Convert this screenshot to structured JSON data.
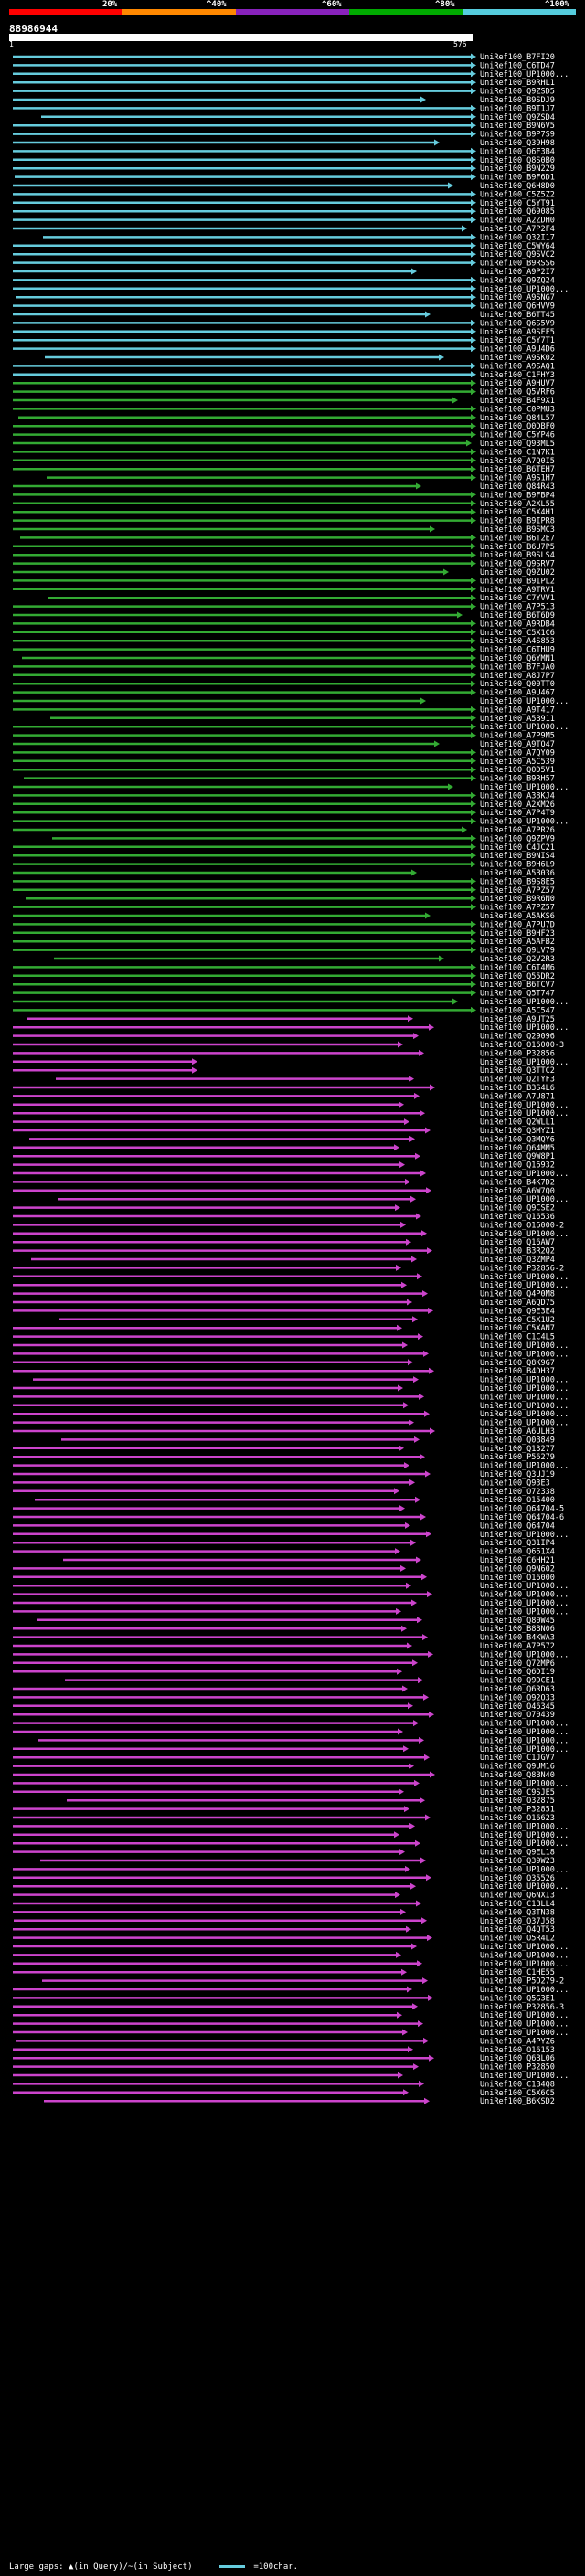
{
  "scale": {
    "labels": [
      "20%",
      "^40%",
      "^60%",
      "^80%",
      "^100%"
    ],
    "colors": [
      "#ff0000",
      "#ff8800",
      "#8822bb",
      "#00aa00",
      "#55ccdd"
    ]
  },
  "query": {
    "id": "88986944",
    "start": "1",
    "end": "576"
  },
  "row_colors": [
    "#66ccdd",
    "#33aa33",
    "#cc44cc"
  ],
  "hits": [
    "UniRef100_B7FI20",
    "UniRef100_C6TD47",
    "UniRef100_UP1000...",
    "UniRef100_B9RHL1",
    "UniRef100_Q9ZSD5",
    "UniRef100_B9SDJ9",
    "UniRef100_B9T1J7",
    "UniRef100_Q9ZSD4",
    "UniRef100_B9N6V5",
    "UniRef100_B9P7S9",
    "UniRef100_Q39H98",
    "UniRef100_Q6F3B4",
    "UniRef100_Q8S0B0",
    "UniRef100_B9N229",
    "UniRef100_B9F6D1",
    "UniRef100_Q6H8D0",
    "UniRef100_C5Z5Z2",
    "UniRef100_C5YT91",
    "UniRef100_Q69085",
    "UniRef100_A2ZDH0",
    "UniRef100_A7P2F4",
    "UniRef100_Q32I17",
    "UniRef100_C5WY64",
    "UniRef100_Q9SVC2",
    "UniRef100_B9RSS6",
    "UniRef100_A9P2I7",
    "UniRef100_Q9ZQ24",
    "UniRef100_UP1000...",
    "UniRef100_A9SNG7",
    "UniRef100_Q6HVV9",
    "UniRef100_B6TT45",
    "UniRef100_Q6S5V9",
    "UniRef100_A9SFF5",
    "UniRef100_C5Y7T1",
    "UniRef100_A9U4D6",
    "UniRef100_A9SK02",
    "UniRef100_A9SAQ1",
    "UniRef100_C1FHY3",
    "UniRef100_A9HUV7",
    "UniRef100_Q5VRF6",
    "UniRef100_B4F9X1",
    "UniRef100_C0PMU3",
    "UniRef100_Q84L57",
    "UniRef100_Q0DBF0",
    "UniRef100_C5YP46",
    "UniRef100_Q93ML5",
    "UniRef100_C1N7K1",
    "UniRef100_A7Q0I5",
    "UniRef100_B6TEH7",
    "UniRef100_A9S1H7",
    "UniRef100_Q84R43",
    "UniRef100_B9FBP4",
    "UniRef100_A2XL55",
    "UniRef100_C5X4H1",
    "UniRef100_B9IPR8",
    "UniRef100_B9SMC3",
    "UniRef100_B6T2E7",
    "UniRef100_B6U7P5",
    "UniRef100_B9SLS4",
    "UniRef100_Q9SRV7",
    "UniRef100_Q9ZU02",
    "UniRef100_B9IPL2",
    "UniRef100_A9TRV1",
    "UniRef100_C7YVV1",
    "UniRef100_A7P513",
    "UniRef100_B6T6D9",
    "UniRef100_A9RDB4",
    "UniRef100_C5X1C6",
    "UniRef100_A4S853",
    "UniRef100_C6THU9",
    "UniRef100_Q6YMN1",
    "UniRef100_B7FJA0",
    "UniRef100_A8J7P7",
    "UniRef100_Q00TT0",
    "UniRef100_A9U467",
    "UniRef100_UP1000...",
    "UniRef100_A9T417",
    "UniRef100_A5B911",
    "UniRef100_UP1000...",
    "UniRef100_A7P9M5",
    "UniRef100_A9TQ47",
    "UniRef100_A7QY09",
    "UniRef100_A5C539",
    "UniRef100_Q0D5V1",
    "UniRef100_B9RH57",
    "UniRef100_UP1000...",
    "UniRef100_A38KJ4",
    "UniRef100_A2XM26",
    "UniRef100_A7P4T9",
    "UniRef100_UP1000...",
    "UniRef100_A7PR26",
    "UniRef100_Q9ZPV9",
    "UniRef100_C4JC21",
    "UniRef100_B9NIS4",
    "UniRef100_B9H6L9",
    "UniRef100_A5B036",
    "UniRef100_B9S8E5",
    "UniRef100_A7PZ57",
    "UniRef100_B9R6N0",
    "UniRef100_A7PZ57",
    "UniRef100_A5AKS6",
    "UniRef100_A7PU7D",
    "UniRef100_B9HF23",
    "UniRef100_A5AFB2",
    "UniRef100_Q9LV79",
    "UniRef100_Q2V2R3",
    "UniRef100_C6T4M6",
    "UniRef100_Q55DR2",
    "UniRef100_B6TCV7",
    "UniRef100_Q5T747",
    "UniRef100_UP1000...",
    "UniRef100_A5C547",
    "UniRef100_A9UT25",
    "UniRef100_UP1000...",
    "UniRef100_Q29096",
    "UniRef100_O16000-3",
    "UniRef100_P32856",
    "UniRef100_UP1000...",
    "UniRef100_Q3TTC2",
    "UniRef100_Q2TYF3",
    "UniRef100_B3S4L6",
    "UniRef100_A7U871",
    "UniRef100_UP1000...",
    "UniRef100_UP1000...",
    "UniRef100_Q2WLL1",
    "UniRef100_Q3MYZ1",
    "UniRef100_Q3MQY6",
    "UniRef100_Q64MM5",
    "UniRef100_Q9W8P1",
    "UniRef100_Q16932",
    "UniRef100_UP1000...",
    "UniRef100_B4K7D2",
    "UniRef100_A6W7Q0",
    "UniRef100_UP1000...",
    "UniRef100_Q9CSE2",
    "UniRef100_Q16536",
    "UniRef100_O16000-2",
    "UniRef100_UP1000...",
    "UniRef100_Q16AW7",
    "UniRef100_B3R2Q2",
    "UniRef100_Q3ZMP4",
    "UniRef100_P32856-2",
    "UniRef100_UP1000...",
    "UniRef100_UP1000...",
    "UniRef100_Q4P0M8",
    "UniRef100_A6QD75",
    "UniRef100_Q9E3E4",
    "UniRef100_C5X1U2",
    "UniRef100_C5XAN7",
    "UniRef100_C1C4L5",
    "UniRef100_UP1000...",
    "UniRef100_UP1000...",
    "UniRef100_Q8K9G7",
    "UniRef100_B4DH37",
    "UniRef100_UP1000...",
    "UniRef100_UP1000...",
    "UniRef100_UP1000...",
    "UniRef100_UP1000...",
    "UniRef100_UP1000...",
    "UniRef100_UP1000...",
    "UniRef100_A6ULH3",
    "UniRef100_Q0B849",
    "UniRef100_Q13277",
    "UniRef100_P56279",
    "UniRef100_UP1000...",
    "UniRef100_Q3UJ19",
    "UniRef100_Q93E3",
    "UniRef100_O72338",
    "UniRef100_O15400",
    "UniRef100_Q64704-5",
    "UniRef100_Q64704-6",
    "UniRef100_Q64704",
    "UniRef100_UP1000...",
    "UniRef100_Q31IP4",
    "UniRef100_Q661X4",
    "UniRef100_C6HH21",
    "UniRef100_Q9N602",
    "UniRef100_O16000",
    "UniRef100_UP1000...",
    "UniRef100_UP1000...",
    "UniRef100_UP1000...",
    "UniRef100_UP1000...",
    "UniRef100_Q80W45",
    "UniRef100_B8BN06",
    "UniRef100_B4KWA3",
    "UniRef100_A7P572",
    "UniRef100_UP1000...",
    "UniRef100_Q72MP6",
    "UniRef100_Q6DI19",
    "UniRef100_Q9DCE1",
    "UniRef100_Q6RD63",
    "UniRef100_O92O33",
    "UniRef100_O46345",
    "UniRef100_O70439",
    "UniRef100_UP1000...",
    "UniRef100_UP1000...",
    "UniRef100_UP1000...",
    "UniRef100_UP1000...",
    "UniRef100_C1JGV7",
    "UniRef100_Q9UM16",
    "UniRef100_Q8BN40",
    "UniRef100_UP1000...",
    "UniRef100_C9SJE5",
    "UniRef100_O32875",
    "UniRef100_P32851",
    "UniRef100_O16623",
    "UniRef100_UP1000...",
    "UniRef100_UP1000...",
    "UniRef100_UP1000...",
    "UniRef100_Q9EL18",
    "UniRef100_Q39W23",
    "UniRef100_UP1000...",
    "UniRef100_O35526",
    "UniRef100_UP1000...",
    "UniRef100_Q6NXI3",
    "UniRef100_C1BLL4",
    "UniRef100_Q3TN38",
    "UniRef100_O37J58",
    "UniRef100_Q4QT53",
    "UniRef100_O5R4L2",
    "UniRef100_UP1000...",
    "UniRef100_UP1000...",
    "UniRef100_UP1000...",
    "UniRef100_C1HE55",
    "UniRef100_P5O279-2",
    "UniRef100_UP1000...",
    "UniRef100_Q5G3E1",
    "UniRef100_P32856-3",
    "UniRef100_UP1000...",
    "UniRef100_UP1000...",
    "UniRef100_UP1000...",
    "UniRef100_A4PYZ6",
    "UniRef100_O16153",
    "UniRef100_Q6BL06",
    "UniRef100_P32850",
    "UniRef100_UP1000...",
    "UniRef100_C1B4Q8",
    "UniRef100_C5X6C5",
    "UniRef100_B6KSD2"
  ],
  "footer": {
    "text": "Large gaps: ▲(in Query)/~(in Subject)",
    "key": "=100char."
  }
}
